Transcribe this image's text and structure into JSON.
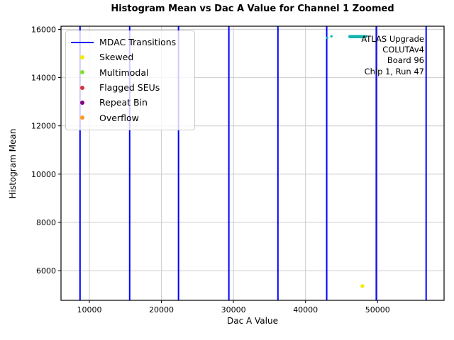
{
  "window": {
    "title": "Histogram Mean vs Dac A Value for Channel 1 Zoomed"
  },
  "chart_data": {
    "type": "scatter",
    "title": "Histogram Mean vs Dac A Value for Channel 1 Zoomed",
    "xlabel": "Dac A Value",
    "ylabel": "Histogram Mean",
    "xlim": [
      6060,
      59230
    ],
    "ylim": [
      4770,
      16130
    ],
    "x_ticks": [
      10000,
      20000,
      30000,
      40000,
      50000
    ],
    "y_ticks": [
      6000,
      8000,
      10000,
      12000,
      14000,
      16000
    ],
    "grid": true,
    "grid_color": "#cccccc",
    "mdac_transitions": {
      "label": "MDAC Transitions",
      "color": "#0000ff",
      "x_values": [
        8700,
        15590,
        22370,
        29360,
        36170,
        42940,
        49820,
        56740
      ]
    },
    "series": [
      {
        "name": "histogram-mean",
        "color": "#12b5b0",
        "marker": "circle",
        "run": {
          "x_start": 46160,
          "x_end": 48300,
          "y": 15700,
          "n_points": 25,
          "radius_px": 2.3
        },
        "points": [
          [
            42990,
            15650
          ],
          [
            43600,
            15710
          ]
        ],
        "point_radius_px": 1.7
      },
      {
        "name": "skewed",
        "color": "#f2ea00",
        "marker": "circle",
        "points": [
          [
            47900,
            5360
          ]
        ],
        "point_radius_px": 2.7
      }
    ],
    "legend": {
      "position": "upper-left",
      "entries": [
        {
          "label": "MDAC Transitions",
          "color": "#0000ff",
          "marker": "line"
        },
        {
          "label": "Skewed",
          "color": "#f2ea00",
          "marker": "dot"
        },
        {
          "label": "Multimodal",
          "color": "#7fe22b",
          "marker": "dot"
        },
        {
          "label": "Flagged SEUs",
          "color": "#d6323e",
          "marker": "dot"
        },
        {
          "label": "Repeat Bin",
          "color": "#800080",
          "marker": "dot"
        },
        {
          "label": "Overflow",
          "color": "#ff9a1f",
          "marker": "dot"
        }
      ]
    },
    "annotation": {
      "align": "right",
      "lines": [
        "ATLAS Upgrade",
        "COLUTAv4",
        "Board 96",
        "Chip 1, Run 47"
      ]
    }
  }
}
